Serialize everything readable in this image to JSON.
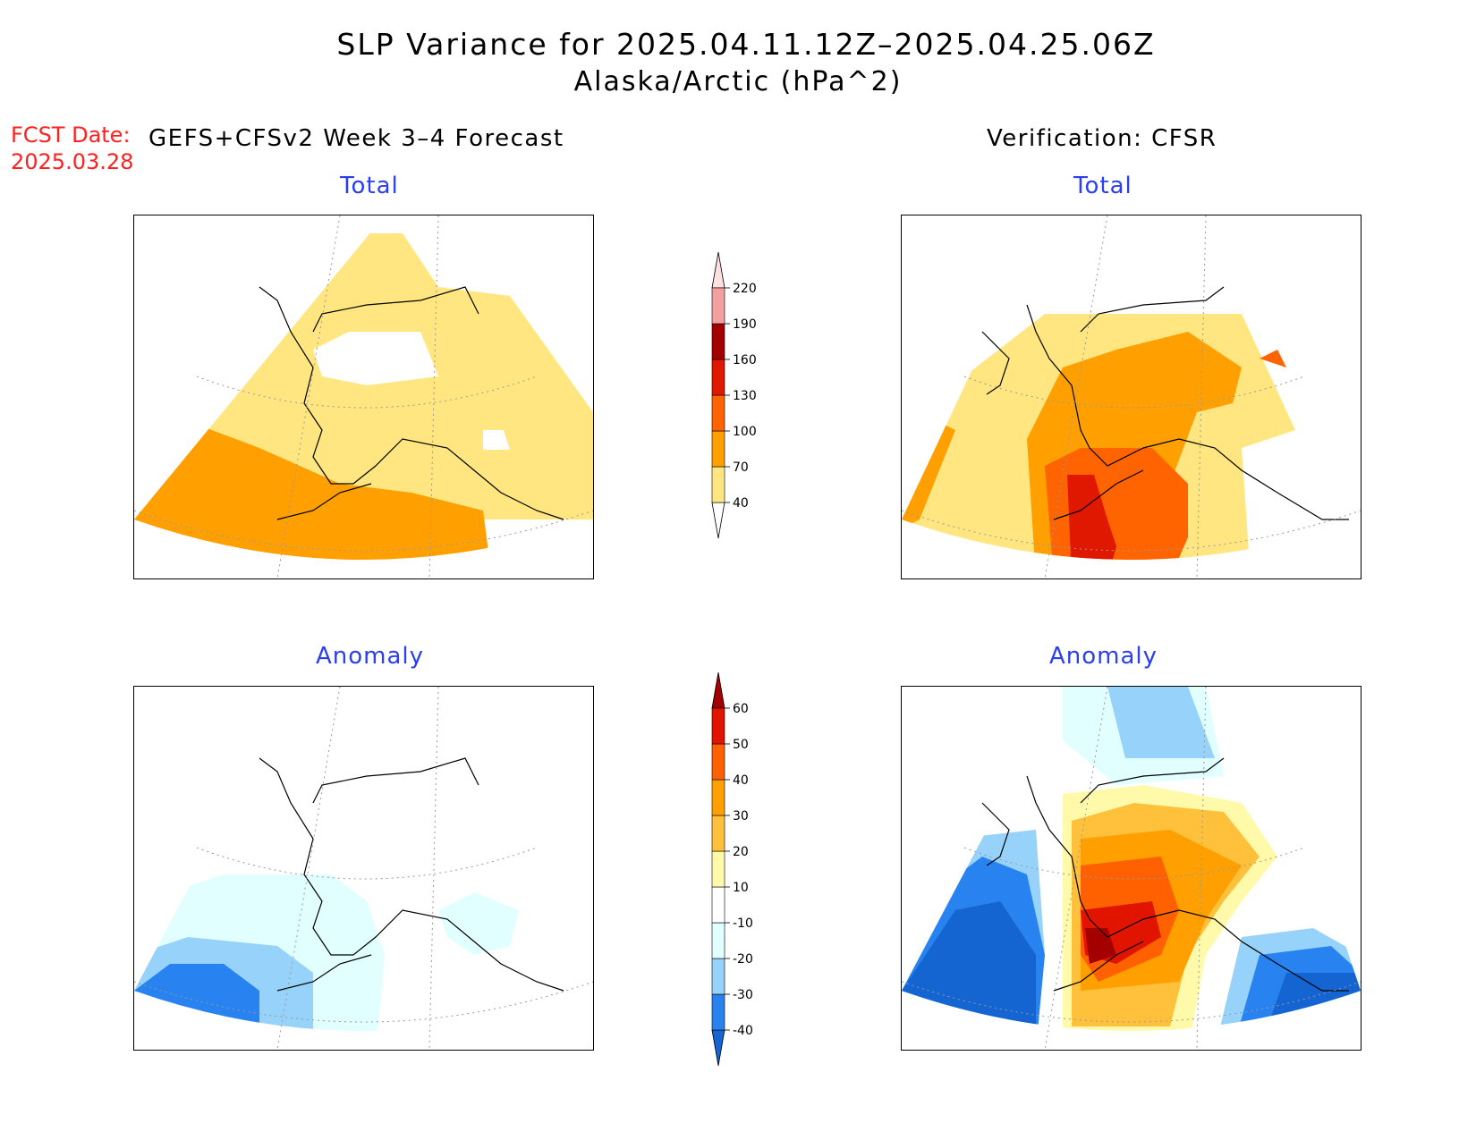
{
  "title": {
    "line1": "SLP Variance for 2025.04.11.12Z–2025.04.25.06Z",
    "line2": "Alaska/Arctic (hPa^2)"
  },
  "forecast_date": {
    "label": "FCST Date:",
    "value": "2025.03.28"
  },
  "left_header": "GEFS+CFSv2 Week 3–4 Forecast",
  "right_header": "Verification: CFSR",
  "panels": [
    {
      "subtitle": "Total",
      "field": "total",
      "source": "forecast"
    },
    {
      "subtitle": "Total",
      "field": "total",
      "source": "verification"
    },
    {
      "subtitle": "Anomaly",
      "field": "anomaly",
      "source": "forecast"
    },
    {
      "subtitle": "Anomaly",
      "field": "anomaly",
      "source": "verification"
    }
  ],
  "colorbar_total": {
    "levels": [
      "40",
      "70",
      "100",
      "130",
      "160",
      "190",
      "220"
    ],
    "colors": [
      "#ffffff",
      "#ffe680",
      "#ffa000",
      "#ff6400",
      "#e11800",
      "#a50000",
      "#f4a0a0",
      "#fde0e0"
    ]
  },
  "colorbar_anomaly": {
    "levels": [
      "-40",
      "-30",
      "-20",
      "-10",
      "10",
      "20",
      "30",
      "40",
      "50",
      "60"
    ],
    "colors": [
      "#1464d2",
      "#2882f0",
      "#96d2fa",
      "#e1ffff",
      "#ffffff",
      "#fffaaa",
      "#ffc03c",
      "#ffa000",
      "#ff6000",
      "#e11400",
      "#a50000"
    ]
  }
}
